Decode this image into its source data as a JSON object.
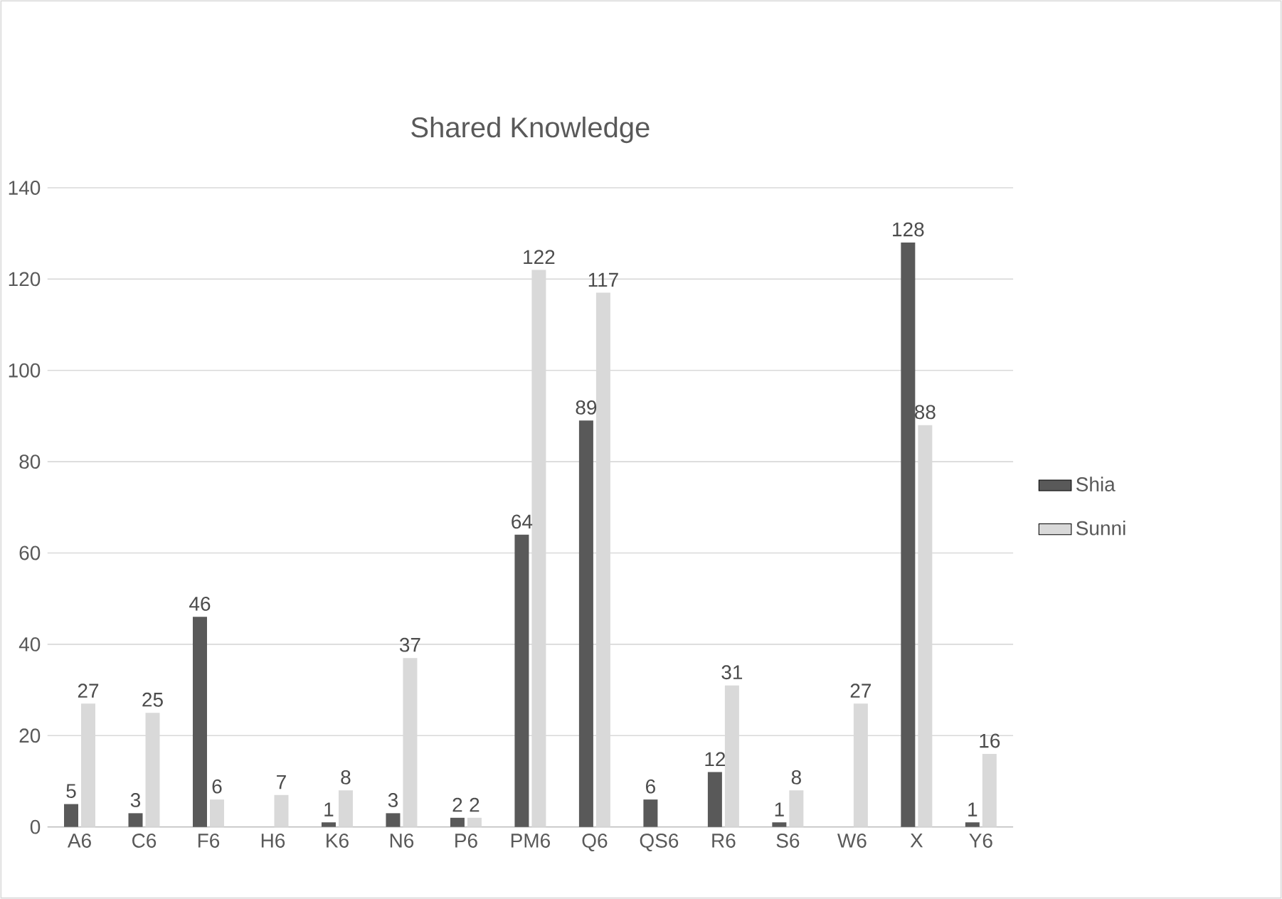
{
  "chart_data": {
    "type": "bar",
    "title": "Shared Knowledge",
    "categories": [
      "A6",
      "C6",
      "F6",
      "H6",
      "K6",
      "N6",
      "P6",
      "PM6",
      "Q6",
      "QS6",
      "R6",
      "S6",
      "W6",
      "X",
      "Y6"
    ],
    "series": [
      {
        "name": "Shia",
        "color": "#595959",
        "values": [
          5,
          3,
          46,
          null,
          1,
          3,
          2,
          64,
          89,
          6,
          12,
          1,
          null,
          128,
          1
        ]
      },
      {
        "name": "Sunni",
        "color": "#d9d9d9",
        "values": [
          27,
          25,
          6,
          7,
          8,
          37,
          2,
          122,
          117,
          null,
          31,
          8,
          27,
          88,
          16
        ]
      }
    ],
    "ylim": [
      0,
      140
    ],
    "yticks": [
      0,
      20,
      40,
      60,
      80,
      100,
      120,
      140
    ],
    "grid": "y",
    "legend": "right",
    "data_labels": true
  }
}
